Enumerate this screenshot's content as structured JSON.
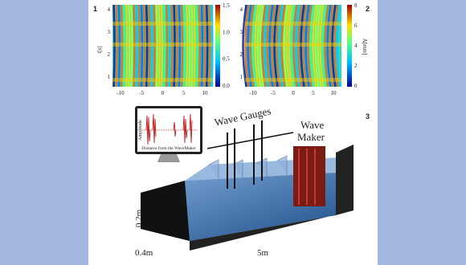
{
  "panel1": {
    "label": "1",
    "ylabel": "t[s]",
    "yticks": [
      "4",
      "3",
      "2",
      "1"
    ],
    "xticks": [
      "-10",
      "-5",
      "0",
      "5",
      "10"
    ],
    "cticks": [
      "1.5",
      "1.0",
      "0.5",
      "0.0"
    ]
  },
  "panel2": {
    "label": "2",
    "ylabel": "A[mm]",
    "yticks": [
      "4",
      "3",
      "2",
      "1"
    ],
    "xticks": [
      "-10",
      "-5",
      "0",
      "5",
      "10"
    ],
    "cticks": [
      "8",
      "6",
      "4",
      "2",
      "0"
    ]
  },
  "panel3": {
    "label": "3",
    "gauges": "Wave Gauges",
    "maker": [
      "Wave",
      "Maker"
    ],
    "monitor": {
      "ylabel": "Amplitude",
      "xlabel": "Distance from the WaveMaker"
    },
    "dims": [
      "0.2m",
      "0.4m",
      "5m"
    ]
  }
}
